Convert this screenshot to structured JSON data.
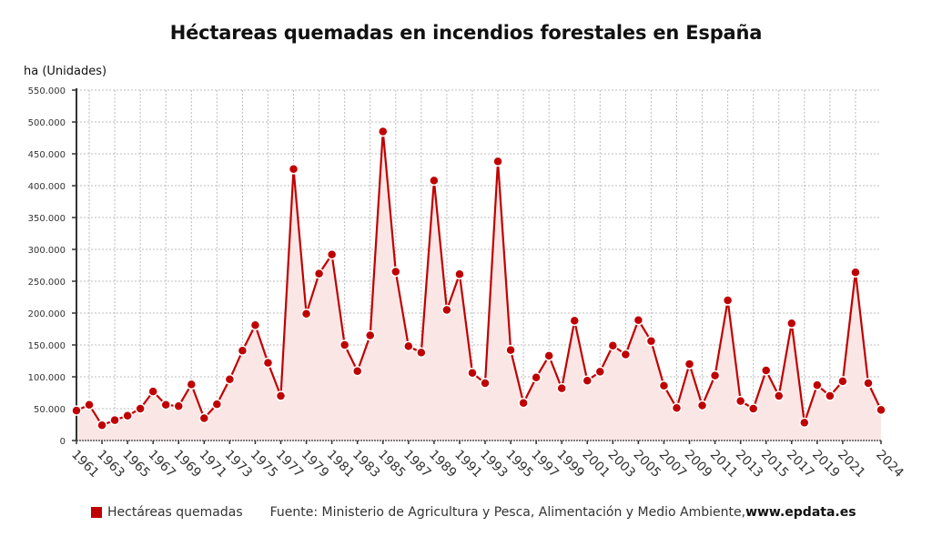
{
  "chart_data": {
    "type": "area",
    "title": "Héctareas quemadas en incendios forestales en España",
    "ylabel": "ha (Unidades)",
    "xlabel": "",
    "ylim": [
      0,
      550000
    ],
    "yticks": [
      0,
      50000,
      100000,
      150000,
      200000,
      250000,
      300000,
      350000,
      400000,
      450000,
      500000,
      550000
    ],
    "ytick_labels": [
      "0",
      "50.000",
      "100.000",
      "150.000",
      "200.000",
      "250.000",
      "300.000",
      "350.000",
      "400.000",
      "450.000",
      "500.000",
      "550.000"
    ],
    "xtick_labels": [
      "1961",
      "1963",
      "1965",
      "1967",
      "1969",
      "1971",
      "1973",
      "1975",
      "1977",
      "1979",
      "1981",
      "1983",
      "1985",
      "1987",
      "1989",
      "1991",
      "1993",
      "1995",
      "1997",
      "1999",
      "2001",
      "2003",
      "2005",
      "2007",
      "2009",
      "2011",
      "2013",
      "2015",
      "2017",
      "2019",
      "2021",
      "2024"
    ],
    "grid": true,
    "legend_position": "bottom-left",
    "x": [
      1961,
      1962,
      1963,
      1964,
      1965,
      1966,
      1967,
      1968,
      1969,
      1970,
      1971,
      1972,
      1973,
      1974,
      1975,
      1976,
      1977,
      1978,
      1979,
      1980,
      1981,
      1982,
      1983,
      1984,
      1985,
      1986,
      1987,
      1988,
      1989,
      1990,
      1991,
      1992,
      1993,
      1994,
      1995,
      1996,
      1997,
      1998,
      1999,
      2000,
      2001,
      2002,
      2003,
      2004,
      2005,
      2006,
      2007,
      2008,
      2009,
      2010,
      2011,
      2012,
      2013,
      2014,
      2015,
      2016,
      2017,
      2018,
      2019,
      2020,
      2021,
      2022,
      2023,
      2024
    ],
    "series": [
      {
        "name": "Hectáreas quemadas",
        "color": "#c00000",
        "fill": "#fbe6e6",
        "values": [
          47000,
          56000,
          24000,
          32000,
          39000,
          50000,
          77000,
          56000,
          54000,
          88000,
          35000,
          57000,
          96000,
          141000,
          181000,
          122000,
          70000,
          426000,
          199000,
          262000,
          292000,
          150000,
          109000,
          165000,
          485000,
          265000,
          148000,
          138000,
          408000,
          205000,
          261000,
          106000,
          90000,
          438000,
          142000,
          59000,
          99000,
          133000,
          82000,
          188000,
          94000,
          108000,
          149000,
          135000,
          189000,
          156000,
          86000,
          51000,
          120000,
          55000,
          102000,
          220000,
          62000,
          50000,
          110000,
          70000,
          184000,
          28000,
          87000,
          70000,
          93000,
          264000,
          90000,
          48000
        ]
      }
    ]
  },
  "legend": {
    "series_label": "Hectáreas quemadas",
    "source": "Fuente: Ministerio de Agricultura y Pesca, Alimentación y Medio Ambiente, ",
    "site": "www.epdata.es"
  }
}
